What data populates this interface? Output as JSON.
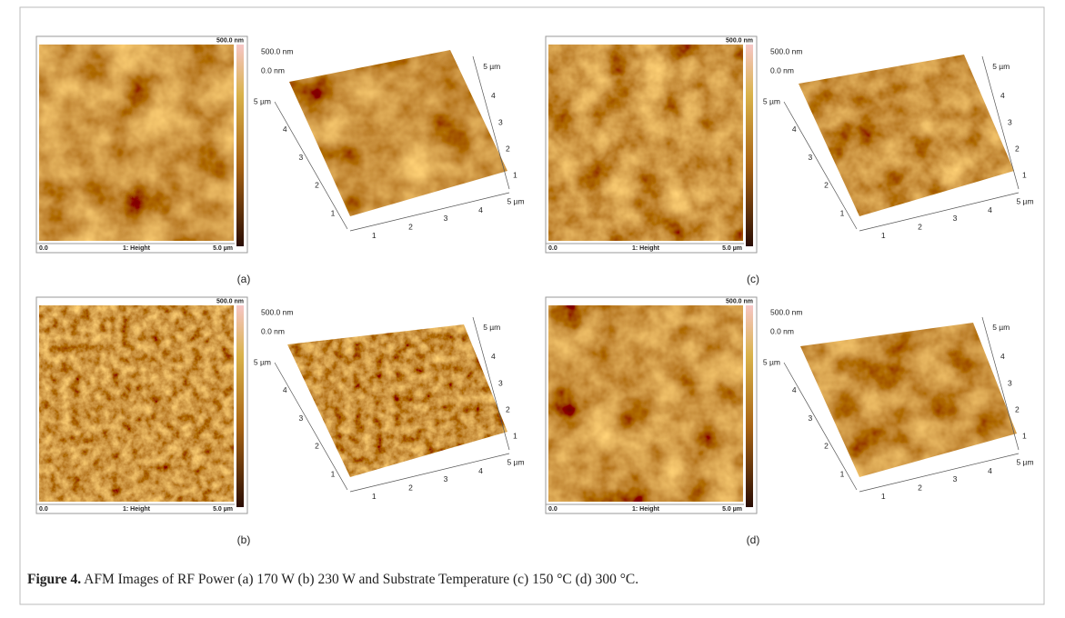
{
  "figure": {
    "panels": [
      {
        "label": "(a)",
        "map": {
          "scale_max": "500.0 nm",
          "x_start": "0.0",
          "channel": "1: Height",
          "x_end": "5.0 µm"
        },
        "surface": {
          "z_max": "500.0 nm",
          "z_min": "0.0 nm",
          "left_ticks": [
            "5 µm",
            "4",
            "3",
            "2",
            "1"
          ],
          "front_ticks": [
            "1",
            "2",
            "3",
            "4",
            "5 µm"
          ],
          "right_ticks": [
            "1",
            "2",
            "3",
            "4",
            "5 µm"
          ]
        }
      },
      {
        "label": "(b)",
        "map": {
          "scale_max": "500.0 nm",
          "x_start": "0.0",
          "channel": "1: Height",
          "x_end": "5.0 µm"
        },
        "surface": {
          "z_max": "500.0 nm",
          "z_min": "0.0 nm",
          "left_ticks": [
            "5 µm",
            "4",
            "3",
            "2",
            "1"
          ],
          "front_ticks": [
            "1",
            "2",
            "3",
            "4",
            "5 µm"
          ],
          "right_ticks": [
            "1",
            "2",
            "3",
            "4",
            "5 µm"
          ]
        }
      },
      {
        "label": "(c)",
        "map": {
          "scale_max": "500.0 nm",
          "x_start": "0.0",
          "channel": "1: Height",
          "x_end": "5.0 µm"
        },
        "surface": {
          "z_max": "500.0 nm",
          "z_min": "0.0 nm",
          "left_ticks": [
            "5 µm",
            "4",
            "3",
            "2",
            "1"
          ],
          "front_ticks": [
            "1",
            "2",
            "3",
            "4",
            "5 µm"
          ],
          "right_ticks": [
            "1",
            "2",
            "3",
            "4",
            "5 µm"
          ]
        }
      },
      {
        "label": "(d)",
        "map": {
          "scale_max": "500.0 nm",
          "x_start": "0.0",
          "channel": "1: Height",
          "x_end": "5.0 µm"
        },
        "surface": {
          "z_max": "500.0 nm",
          "z_min": "0.0 nm",
          "left_ticks": [
            "5 µm",
            "4",
            "3",
            "2",
            "1"
          ],
          "front_ticks": [
            "1",
            "2",
            "3",
            "4",
            "5 µm"
          ],
          "right_ticks": [
            "1",
            "2",
            "3",
            "4",
            "5 µm"
          ]
        }
      }
    ]
  },
  "caption": {
    "label": "Figure 4.",
    "text": " AFM Images of RF Power (a) 170 W (b) 230 W and Substrate Temperature (c) 150 °C (d) 300 °C."
  }
}
